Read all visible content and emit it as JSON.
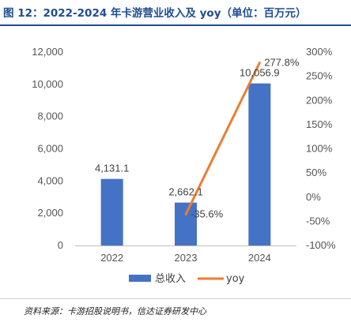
{
  "header": {
    "title": "图 12：2022-2024 年卡游营业收入及 yoy（单位：百万元）"
  },
  "footer": {
    "source": "资料来源：卡游招股说明书，信达证券研发中心"
  },
  "chart_data": {
    "type": "bar",
    "categories": [
      "2022",
      "2023",
      "2024"
    ],
    "series": [
      {
        "name": "总收入",
        "kind": "bar",
        "axis": "left",
        "values": [
          4131.1,
          2662.1,
          10056.9
        ],
        "labels": [
          "4,131.1",
          "2,662.1",
          "10,056.9"
        ],
        "color": "#4472c4"
      },
      {
        "name": "yoy",
        "kind": "line",
        "axis": "right",
        "values": [
          null,
          -35.6,
          277.8
        ],
        "labels": [
          "",
          "-35.6%",
          "277.8%"
        ],
        "color": "#ed7d31"
      }
    ],
    "left_axis": {
      "ylim": [
        0,
        12000
      ],
      "ticks": [
        "0",
        "2,000",
        "4,000",
        "6,000",
        "8,000",
        "10,000",
        "12,000"
      ]
    },
    "right_axis": {
      "ylim": [
        -100,
        300
      ],
      "ticks": [
        "-100%",
        "-50%",
        "0%",
        "50%",
        "100%",
        "150%",
        "200%",
        "250%",
        "300%"
      ]
    },
    "legend": "bottom",
    "grid": false
  }
}
